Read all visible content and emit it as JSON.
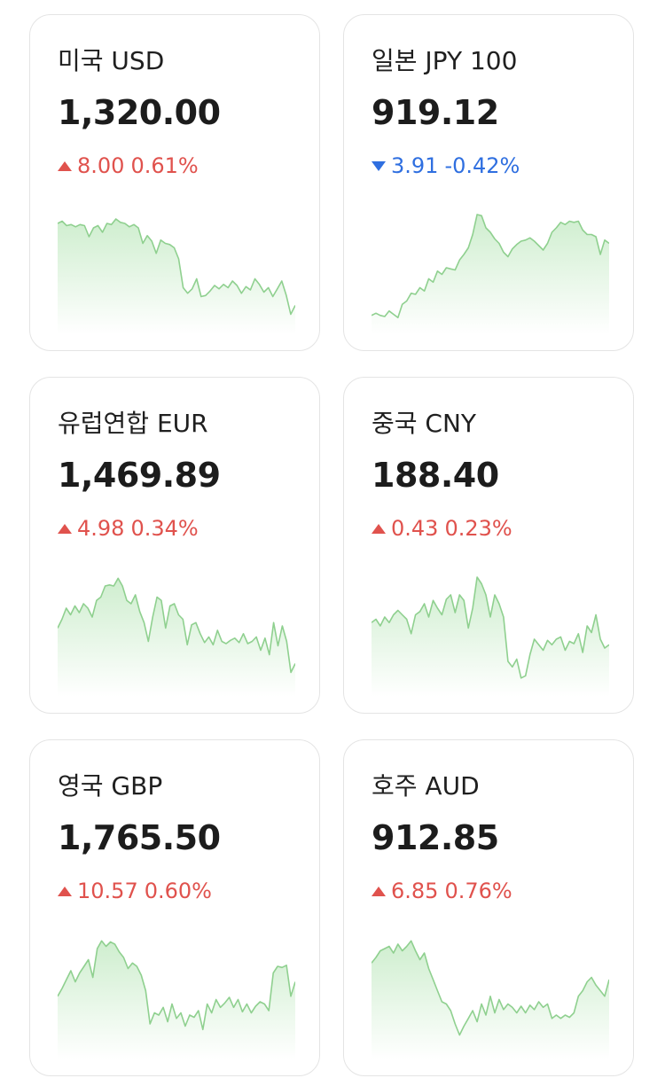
{
  "cards": [
    {
      "name": "미국 USD",
      "price": "1,320.00",
      "dir": "up",
      "change": "8.00",
      "pct": "0.61%",
      "spark": [
        0.88,
        0.9,
        0.86,
        0.87,
        0.85,
        0.87,
        0.86,
        0.76,
        0.84,
        0.86,
        0.8,
        0.88,
        0.87,
        0.92,
        0.89,
        0.88,
        0.85,
        0.87,
        0.84,
        0.7,
        0.77,
        0.72,
        0.61,
        0.73,
        0.7,
        0.69,
        0.66,
        0.56,
        0.3,
        0.25,
        0.29,
        0.38,
        0.22,
        0.23,
        0.27,
        0.32,
        0.29,
        0.33,
        0.3,
        0.36,
        0.32,
        0.25,
        0.31,
        0.28,
        0.38,
        0.33,
        0.26,
        0.3,
        0.22,
        0.29,
        0.36,
        0.23,
        0.06,
        0.14
      ]
    },
    {
      "name": "일본 JPY 100",
      "price": "919.12",
      "dir": "down",
      "change": "3.91",
      "pct": "-0.42%",
      "spark": [
        0.05,
        0.07,
        0.05,
        0.04,
        0.09,
        0.06,
        0.03,
        0.15,
        0.18,
        0.25,
        0.24,
        0.3,
        0.27,
        0.38,
        0.35,
        0.45,
        0.42,
        0.48,
        0.47,
        0.46,
        0.55,
        0.6,
        0.66,
        0.78,
        0.96,
        0.95,
        0.84,
        0.8,
        0.74,
        0.7,
        0.62,
        0.58,
        0.65,
        0.69,
        0.72,
        0.73,
        0.75,
        0.72,
        0.68,
        0.64,
        0.7,
        0.8,
        0.84,
        0.89,
        0.87,
        0.9,
        0.89,
        0.9,
        0.82,
        0.78,
        0.78,
        0.76,
        0.6,
        0.73,
        0.7
      ]
    },
    {
      "name": "유럽연합 EUR",
      "price": "1,469.89",
      "dir": "up",
      "change": "4.98",
      "pct": "0.34%",
      "spark": [
        0.5,
        0.58,
        0.68,
        0.62,
        0.7,
        0.64,
        0.72,
        0.68,
        0.6,
        0.75,
        0.78,
        0.88,
        0.89,
        0.88,
        0.95,
        0.88,
        0.75,
        0.72,
        0.8,
        0.65,
        0.55,
        0.38,
        0.6,
        0.78,
        0.75,
        0.5,
        0.7,
        0.72,
        0.62,
        0.58,
        0.35,
        0.53,
        0.55,
        0.45,
        0.37,
        0.42,
        0.35,
        0.48,
        0.38,
        0.36,
        0.39,
        0.41,
        0.37,
        0.45,
        0.36,
        0.38,
        0.42,
        0.3,
        0.41,
        0.26,
        0.55,
        0.34,
        0.52,
        0.38,
        0.1,
        0.18
      ]
    },
    {
      "name": "중국 CNY",
      "price": "188.40",
      "dir": "up",
      "change": "0.43",
      "pct": "0.23%",
      "spark": [
        0.55,
        0.58,
        0.52,
        0.6,
        0.55,
        0.62,
        0.66,
        0.62,
        0.58,
        0.45,
        0.62,
        0.65,
        0.72,
        0.6,
        0.75,
        0.68,
        0.62,
        0.76,
        0.8,
        0.64,
        0.8,
        0.75,
        0.5,
        0.68,
        0.96,
        0.9,
        0.8,
        0.6,
        0.8,
        0.72,
        0.6,
        0.2,
        0.15,
        0.22,
        0.05,
        0.07,
        0.26,
        0.4,
        0.35,
        0.3,
        0.39,
        0.35,
        0.4,
        0.42,
        0.3,
        0.38,
        0.36,
        0.45,
        0.28,
        0.52,
        0.46,
        0.62,
        0.4,
        0.32,
        0.35
      ]
    },
    {
      "name": "영국 GBP",
      "price": "1,765.50",
      "dir": "up",
      "change": "10.57",
      "pct": "0.60%",
      "spark": [
        0.45,
        0.52,
        0.6,
        0.68,
        0.58,
        0.66,
        0.72,
        0.78,
        0.62,
        0.88,
        0.95,
        0.9,
        0.94,
        0.92,
        0.85,
        0.8,
        0.7,
        0.75,
        0.72,
        0.64,
        0.5,
        0.2,
        0.3,
        0.28,
        0.35,
        0.22,
        0.38,
        0.25,
        0.3,
        0.18,
        0.28,
        0.26,
        0.32,
        0.15,
        0.38,
        0.3,
        0.42,
        0.35,
        0.39,
        0.44,
        0.35,
        0.42,
        0.31,
        0.38,
        0.3,
        0.36,
        0.4,
        0.38,
        0.32,
        0.66,
        0.72,
        0.71,
        0.73,
        0.45,
        0.58
      ]
    },
    {
      "name": "호주 AUD",
      "price": "912.85",
      "dir": "up",
      "change": "6.85",
      "pct": "0.76%",
      "spark": [
        0.75,
        0.8,
        0.86,
        0.88,
        0.9,
        0.84,
        0.92,
        0.86,
        0.9,
        0.95,
        0.86,
        0.78,
        0.84,
        0.7,
        0.6,
        0.5,
        0.4,
        0.38,
        0.32,
        0.2,
        0.1,
        0.18,
        0.25,
        0.32,
        0.22,
        0.38,
        0.28,
        0.45,
        0.3,
        0.42,
        0.33,
        0.38,
        0.35,
        0.3,
        0.36,
        0.3,
        0.37,
        0.33,
        0.4,
        0.35,
        0.38,
        0.25,
        0.28,
        0.25,
        0.28,
        0.26,
        0.3,
        0.45,
        0.5,
        0.58,
        0.62,
        0.55,
        0.5,
        0.45,
        0.6
      ]
    }
  ]
}
